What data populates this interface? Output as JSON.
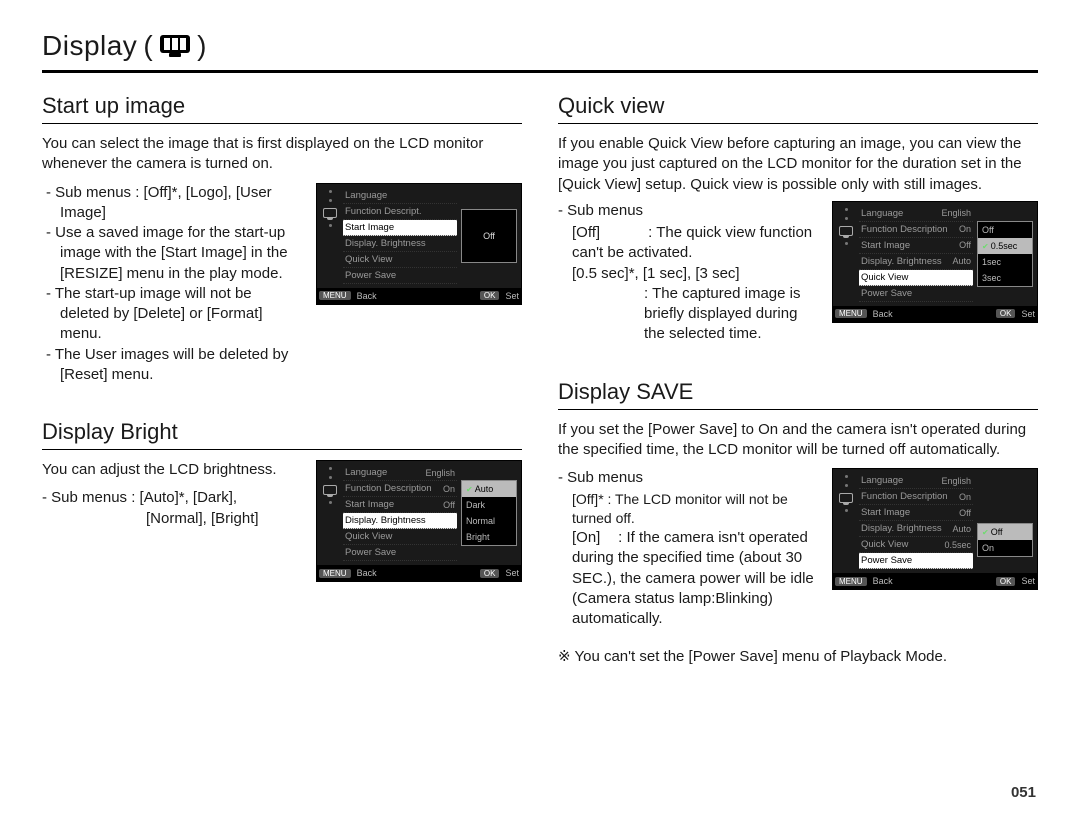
{
  "page": {
    "title": "Display",
    "number": "051",
    "colors": {
      "text": "#1a1a1a",
      "rule": "#000000",
      "menu_bg": "#1a1a1a",
      "menu_text_dim": "#9a9a9a",
      "menu_text_hl": "#ffffff",
      "menu_popup_sel_bg": "#bbbbbb",
      "check_green": "#6fdb6f"
    }
  },
  "startup": {
    "heading": "Start up image",
    "intro": "You can select the image that is first displayed on the LCD monitor whenever the camera is turned on.",
    "b1": "- Sub menus : [Off]*, [Logo], [User Image]",
    "b2": "- Use a saved image for the start-up image with the [Start Image] in the [RESIZE] menu in the play mode.",
    "b3": "- The start-up image will not be deleted by [Delete] or [Format] menu.",
    "b4": "- The User images will be deleted by [Reset] menu.",
    "menu": {
      "items": [
        {
          "label": "Language",
          "value": ""
        },
        {
          "label": "Function Descript.",
          "value": ""
        },
        {
          "label": "Start Image",
          "value": "",
          "hl": true
        },
        {
          "label": "Display. Brightness",
          "value": ""
        },
        {
          "label": "Quick View",
          "value": ""
        },
        {
          "label": "Power Save",
          "value": ""
        }
      ],
      "popup": {
        "single": "Off"
      },
      "footer": {
        "back": "Back",
        "set": "Set",
        "b1": "MENU",
        "b2": "OK"
      }
    }
  },
  "bright": {
    "heading": "Display Bright",
    "intro": "You can adjust the LCD brightness.",
    "b1": "- Sub menus : [Auto]*, [Dark],",
    "b1_cont": "[Normal], [Bright]",
    "menu": {
      "items": [
        {
          "label": "Language",
          "value": "English"
        },
        {
          "label": "Function Description",
          "value": "On"
        },
        {
          "label": "Start Image",
          "value": "Off"
        },
        {
          "label": "Display. Brightness",
          "value": "",
          "hl": true
        },
        {
          "label": "Quick View",
          "value": ""
        },
        {
          "label": "Power Save",
          "value": ""
        }
      ],
      "popup_options": [
        "Auto",
        "Dark",
        "Normal",
        "Bright"
      ],
      "popup_selected": 0,
      "footer": {
        "back": "Back",
        "set": "Set",
        "b1": "MENU",
        "b2": "OK"
      }
    }
  },
  "quickview": {
    "heading": "Quick view",
    "intro": "If you enable Quick View before capturing an image, you can view the image you just captured on the LCD monitor for the duration set in the [Quick View] setup. Quick view is possible only with still images.",
    "sub_label": "- Sub menus",
    "off_label": "[Off]",
    "off_text": ": The quick view function can't be activated.",
    "times": "[0.5 sec]*, [1 sec], [3 sec]",
    "times_text": ": The captured image is briefly displayed during the selected time.",
    "menu": {
      "items": [
        {
          "label": "Language",
          "value": "English"
        },
        {
          "label": "Function Description",
          "value": "On"
        },
        {
          "label": "Start Image",
          "value": "Off"
        },
        {
          "label": "Display. Brightness",
          "value": "Auto"
        },
        {
          "label": "Quick View",
          "value": "",
          "hl": true
        },
        {
          "label": "Power Save",
          "value": ""
        }
      ],
      "popup_options": [
        "Off",
        "0.5sec",
        "1sec",
        "3sec"
      ],
      "popup_selected": 1,
      "footer": {
        "back": "Back",
        "set": "Set",
        "b1": "MENU",
        "b2": "OK"
      }
    }
  },
  "powersave": {
    "heading": "Display SAVE",
    "intro": "If you set the [Power Save] to On and the camera isn't operated during the specified time, the LCD monitor will be turned off automatically.",
    "sub_label": "- Sub menus",
    "off_line": "[Off]* : The LCD monitor will not be turned off.",
    "on_label": "[On]",
    "on_text": ": If the camera isn't operated during the specified time (about 30 SEC.), the camera power will be idle (Camera status lamp:Blinking) automatically.",
    "note_sym": "※",
    "note": "You can't set the [Power Save] menu of Playback Mode.",
    "menu": {
      "items": [
        {
          "label": "Language",
          "value": "English"
        },
        {
          "label": "Function Description",
          "value": "On"
        },
        {
          "label": "Start Image",
          "value": "Off"
        },
        {
          "label": "Display. Brightness",
          "value": "Auto"
        },
        {
          "label": "Quick View",
          "value": "0.5sec"
        },
        {
          "label": "Power Save",
          "value": "",
          "hl": true
        }
      ],
      "popup_options": [
        "Off",
        "On"
      ],
      "popup_selected": 0,
      "footer": {
        "back": "Back",
        "set": "Set",
        "b1": "MENU",
        "b2": "OK"
      }
    }
  }
}
